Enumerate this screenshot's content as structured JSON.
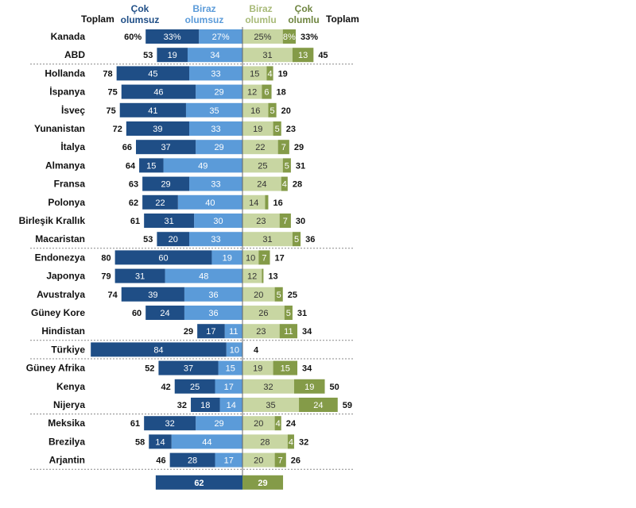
{
  "headers": {
    "total_left": "Toplam",
    "very_negative": [
      "Çok",
      "olumsuz"
    ],
    "somewhat_negative": [
      "Biraz",
      "olumsuz"
    ],
    "somewhat_positive": [
      "Biraz",
      "olumlu"
    ],
    "very_positive": [
      "Çok",
      "olumlu"
    ],
    "total_right": "Toplam"
  },
  "colors": {
    "very_negative": "#1f4e86",
    "somewhat_negative": "#5b9bd9",
    "somewhat_positive": "#c8d6a2",
    "very_positive": "#849b48",
    "very_negative_header": "#1f4e86",
    "somewhat_negative_header": "#5b9bd9",
    "somewhat_positive_header": "#a8ba78",
    "very_positive_header": "#6f8540"
  },
  "chart_data": {
    "type": "bar",
    "orientation": "horizontal-diverging",
    "categories": [
      "Kanada",
      "ABD",
      "Hollanda",
      "İspanya",
      "İsveç",
      "Yunanistan",
      "İtalya",
      "Almanya",
      "Fransa",
      "Polonya",
      "Birleşik Krallık",
      "Macaristan",
      "Endonezya",
      "Japonya",
      "Avustralya",
      "Güney Kore",
      "Hindistan",
      "Türkiye",
      "Güney Afrika",
      "Kenya",
      "Nijerya",
      "Meksika",
      "Brezilya",
      "Arjantin"
    ],
    "series": [
      {
        "name": "Çok olumsuz",
        "values": [
          33,
          19,
          45,
          46,
          41,
          39,
          37,
          15,
          29,
          22,
          31,
          20,
          60,
          31,
          39,
          24,
          17,
          84,
          37,
          25,
          18,
          32,
          14,
          28
        ]
      },
      {
        "name": "Biraz olumsuz",
        "values": [
          27,
          34,
          33,
          29,
          35,
          33,
          29,
          49,
          33,
          40,
          30,
          33,
          19,
          48,
          36,
          36,
          11,
          10,
          15,
          17,
          14,
          29,
          44,
          17
        ]
      },
      {
        "name": "Biraz olumlu",
        "values": [
          25,
          31,
          15,
          12,
          16,
          19,
          22,
          25,
          24,
          14,
          23,
          31,
          10,
          12,
          20,
          26,
          23,
          null,
          19,
          32,
          35,
          20,
          28,
          20
        ]
      },
      {
        "name": "Çok olumlu",
        "values": [
          8,
          13,
          4,
          6,
          5,
          5,
          7,
          5,
          4,
          2,
          7,
          5,
          7,
          1,
          5,
          5,
          11,
          null,
          15,
          19,
          24,
          4,
          4,
          7
        ]
      }
    ],
    "value_labels": {
      "very_negative": [
        "33%",
        "19",
        "45",
        "46",
        "41",
        "39",
        "37",
        "15",
        "29",
        "22",
        "31",
        "20",
        "60",
        "31",
        "39",
        "24",
        "17",
        "84",
        "37",
        "25",
        "18",
        "32",
        "14",
        "28"
      ],
      "somewhat_negative": [
        "27%",
        "34",
        "33",
        "29",
        "35",
        "33",
        "29",
        "49",
        "33",
        "40",
        "30",
        "33",
        "19",
        "48",
        "36",
        "36",
        "11",
        "10",
        "15",
        "17",
        "14",
        "29",
        "44",
        "17"
      ],
      "somewhat_positive": [
        "25%",
        "31",
        "15",
        "12",
        "16",
        "19",
        "22",
        "25",
        "24",
        "14",
        "23",
        "31",
        "10",
        "12",
        "20",
        "26",
        "23",
        "",
        "19",
        "32",
        "35",
        "20",
        "28",
        "20"
      ],
      "very_positive": [
        "8%",
        "13",
        "4",
        "6",
        "5",
        "5",
        "7",
        "5",
        "4",
        "",
        "7",
        "5",
        "7",
        "",
        "5",
        "5",
        "11",
        "",
        "15",
        "19",
        "24",
        "4",
        "4",
        "7"
      ]
    },
    "total_negative": [
      "60%",
      "53",
      "78",
      "75",
      "75",
      "72",
      "66",
      "64",
      "63",
      "62",
      "61",
      "53",
      "80",
      "79",
      "74",
      "60",
      "29",
      "",
      "52",
      "42",
      "32",
      "61",
      "58",
      "46"
    ],
    "total_positive": [
      "33%",
      "45",
      "19",
      "18",
      "20",
      "23",
      "29",
      "31",
      "28",
      "16",
      "30",
      "36",
      "17",
      "13",
      "25",
      "31",
      "34",
      "4",
      "34",
      "50",
      "59",
      "24",
      "32",
      "26"
    ],
    "summary": {
      "negative": 62,
      "positive": 29,
      "negative_label": "62",
      "positive_label": "29"
    },
    "group_breaks_after": [
      "ABD",
      "Macaristan",
      "Hindistan",
      "Türkiye",
      "Nijerya",
      "Arjantin"
    ]
  }
}
